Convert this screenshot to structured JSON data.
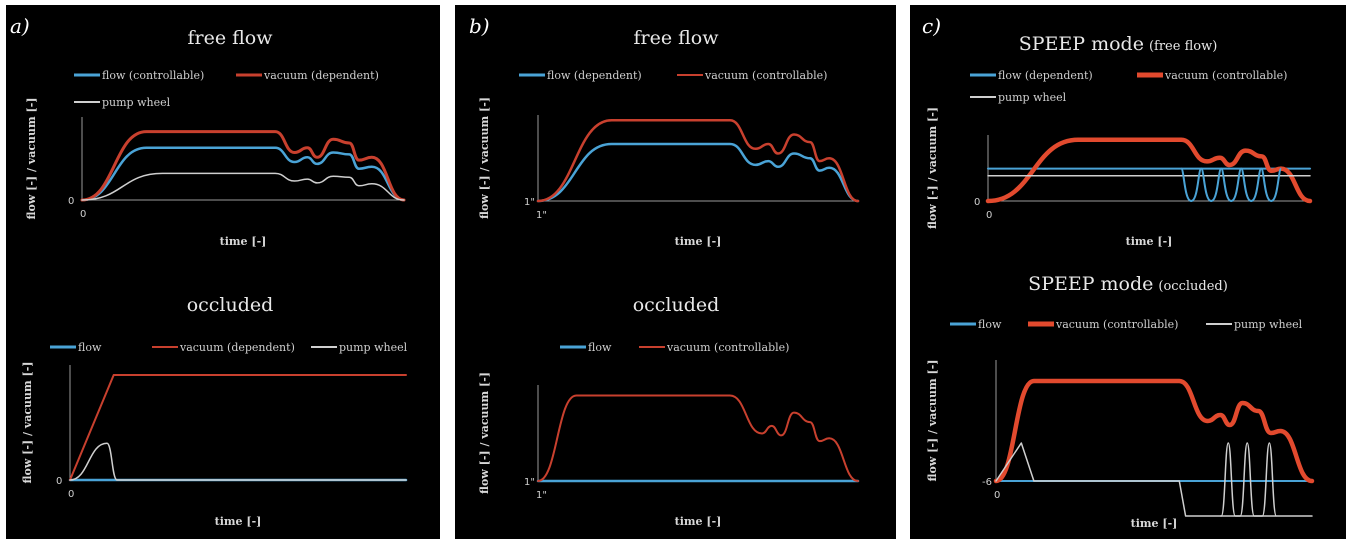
{
  "colors": {
    "flow": "#4aa3d6",
    "vacuum": "#c8402e",
    "vacuum_bold": "#e24a2e",
    "pump": "#cfcfcf",
    "axis": "#9a9a9a"
  },
  "panels": [
    {
      "label": "a)",
      "top_title": "free flow",
      "top_legend": [
        "flow (controllable)",
        "vacuum (dependent)",
        "pump wheel"
      ],
      "top_tick0": "0",
      "top_ytick": "0",
      "top_xlabel": "time [-]",
      "top_ylabel": "flow [-] / vacuum [-]",
      "bottom_title": "occluded",
      "bottom_legend": [
        "flow",
        "vacuum (dependent)",
        "pump wheel"
      ],
      "bottom_tick0": "0",
      "bottom_ytick": "0",
      "bottom_xlabel": "time [-]",
      "bottom_ylabel": "flow [-] / vacuum [-]"
    },
    {
      "label": "b)",
      "top_title": "free flow",
      "top_legend": [
        "flow (dependent)",
        "vacuum (controllable)"
      ],
      "top_tick0": "1\"",
      "top_ytick": "1\"",
      "top_xlabel": "time [-]",
      "top_ylabel": "flow [-] / vacuum [-]",
      "bottom_title": "occluded",
      "bottom_legend": [
        "flow",
        "vacuum (controllable)"
      ],
      "bottom_tick0": "1\"",
      "bottom_ytick": "1\"",
      "bottom_xlabel": "time [-]",
      "bottom_ylabel": "flow [-] / vacuum [-]"
    },
    {
      "label": "c)",
      "top_title": "SPEEP mode",
      "top_title_small": "(free flow)",
      "top_legend": [
        "flow (dependent)",
        "vacuum (controllable)",
        "pump wheel"
      ],
      "top_tick0": "0",
      "top_ytick": "0",
      "top_xlabel": "time [-]",
      "top_ylabel": "flow [-] / vacuum [-]",
      "bottom_title": "SPEEP mode",
      "bottom_title_small": "(occluded)",
      "bottom_legend": [
        "flow",
        "vacuum (controllable)",
        "pump wheel"
      ],
      "bottom_tick0": "0",
      "bottom_ytick": "-6",
      "bottom_xlabel": "time [-]",
      "bottom_ylabel": "flow [-] / vacuum [-]"
    }
  ],
  "chart_data": [
    {
      "type": "line",
      "panel": "a",
      "title": "free flow",
      "xlabel": "time [-]",
      "ylabel": "flow [-] / vacuum [-]",
      "series": [
        {
          "name": "flow (controllable)",
          "x": [
            0,
            20,
            60,
            66,
            70,
            73,
            78,
            83,
            86,
            90,
            100
          ],
          "y": [
            0,
            0.55,
            0.55,
            0.4,
            0.45,
            0.38,
            0.5,
            0.48,
            0.33,
            0.35,
            0
          ]
        },
        {
          "name": "vacuum (dependent)",
          "x": [
            0,
            20,
            60,
            66,
            70,
            73,
            78,
            83,
            86,
            90,
            100
          ],
          "y": [
            0,
            0.72,
            0.72,
            0.5,
            0.55,
            0.45,
            0.64,
            0.6,
            0.42,
            0.45,
            0
          ]
        },
        {
          "name": "pump wheel",
          "x": [
            0,
            25,
            60,
            66,
            70,
            73,
            78,
            83,
            86,
            90,
            100
          ],
          "y": [
            0,
            0.28,
            0.28,
            0.2,
            0.22,
            0.18,
            0.25,
            0.24,
            0.15,
            0.17,
            0
          ]
        }
      ]
    },
    {
      "type": "line",
      "panel": "a",
      "title": "occluded",
      "xlabel": "time [-]",
      "ylabel": "flow [-] / vacuum [-]",
      "series": [
        {
          "name": "flow",
          "x": [
            0,
            100
          ],
          "y": [
            0,
            0
          ]
        },
        {
          "name": "vacuum (dependent)",
          "x": [
            0,
            13,
            100
          ],
          "y": [
            0,
            1,
            1
          ]
        },
        {
          "name": "pump wheel",
          "x": [
            0,
            11,
            14,
            100
          ],
          "y": [
            0,
            0.35,
            0,
            0
          ]
        }
      ]
    },
    {
      "type": "line",
      "panel": "b",
      "title": "free flow",
      "xlabel": "time [-]",
      "ylabel": "flow [-] / vacuum [-]",
      "series": [
        {
          "name": "flow (dependent)",
          "x": [
            0,
            23,
            60,
            68,
            72,
            75,
            80,
            85,
            88,
            91,
            100
          ],
          "y": [
            0,
            0.6,
            0.6,
            0.38,
            0.42,
            0.36,
            0.5,
            0.45,
            0.32,
            0.35,
            0
          ]
        },
        {
          "name": "vacuum (controllable)",
          "x": [
            0,
            23,
            60,
            68,
            72,
            75,
            80,
            85,
            88,
            91,
            100
          ],
          "y": [
            0,
            0.85,
            0.85,
            0.55,
            0.6,
            0.5,
            0.7,
            0.62,
            0.42,
            0.45,
            0
          ]
        }
      ]
    },
    {
      "type": "line",
      "panel": "b",
      "title": "occluded",
      "xlabel": "time [-]",
      "ylabel": "flow [-] / vacuum [-]",
      "series": [
        {
          "name": "flow",
          "x": [
            0,
            100
          ],
          "y": [
            0,
            0
          ]
        },
        {
          "name": "vacuum (controllable)",
          "x": [
            0,
            12,
            60,
            70,
            73,
            76,
            80,
            85,
            88,
            91,
            100
          ],
          "y": [
            0,
            0.9,
            0.9,
            0.5,
            0.58,
            0.48,
            0.72,
            0.62,
            0.42,
            0.45,
            0
          ]
        }
      ]
    },
    {
      "type": "line",
      "panel": "c",
      "title": "SPEEP mode (free flow)",
      "xlabel": "time [-]",
      "ylabel": "flow [-] / vacuum [-]",
      "series": [
        {
          "name": "flow (dependent)",
          "x": [
            0,
            100
          ],
          "y": [
            0.45,
            0.45
          ]
        },
        {
          "name": "vacuum (controllable)",
          "x": [
            0,
            28,
            60,
            68,
            72,
            75,
            80,
            85,
            88,
            91,
            100
          ],
          "y": [
            0,
            0.85,
            0.85,
            0.55,
            0.6,
            0.5,
            0.7,
            0.62,
            0.42,
            0.45,
            0
          ]
        },
        {
          "name": "pump wheel",
          "x": [
            0,
            100
          ],
          "y": [
            0.35,
            0.35
          ]
        }
      ]
    },
    {
      "type": "line",
      "panel": "c",
      "title": "SPEEP mode (occluded)",
      "xlabel": "time [-]",
      "ylabel": "flow [-] / vacuum [-]",
      "series": [
        {
          "name": "flow",
          "x": [
            0,
            100
          ],
          "y": [
            0,
            0
          ]
        },
        {
          "name": "vacuum (controllable)",
          "x": [
            0,
            12,
            58,
            67,
            71,
            74,
            78,
            83,
            87,
            90,
            100
          ],
          "y": [
            0,
            1,
            1,
            0.6,
            0.66,
            0.56,
            0.78,
            0.7,
            0.48,
            0.5,
            0
          ]
        },
        {
          "name": "pump wheel",
          "x": [
            0,
            8,
            12,
            58,
            60,
            100
          ],
          "y": [
            0,
            0.38,
            0,
            0,
            -0.35,
            -0.35
          ]
        }
      ]
    }
  ]
}
